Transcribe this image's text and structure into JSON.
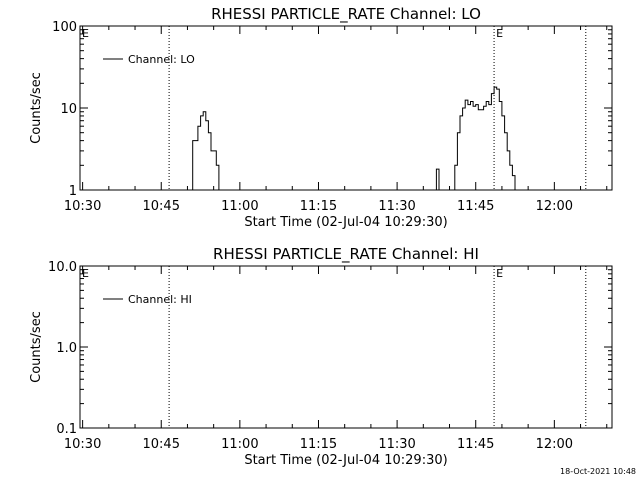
{
  "chart_data": [
    {
      "type": "line",
      "title": "RHESSI PARTICLE_RATE Channel: LO",
      "xlabel": "Start Time (02-Jul-04 10:29:30)",
      "ylabel": "Counts/sec",
      "y_scale": "log",
      "ylim": [
        1,
        100
      ],
      "yticks": [
        "1",
        "10",
        "100"
      ],
      "xlim": [
        "10:29:30",
        "12:11:00"
      ],
      "xticks": [
        "10:30",
        "10:45",
        "11:00",
        "11:15",
        "11:30",
        "11:45",
        "12:00"
      ],
      "legend": {
        "position": "top-left",
        "entries": [
          "Channel: LO"
        ]
      },
      "series": [
        {
          "name": "Channel: LO",
          "x": [
            "10:50:30",
            "10:51:00",
            "10:51:30",
            "10:52:00",
            "10:52:30",
            "10:53:00",
            "10:53:30",
            "10:54:00",
            "10:54:30",
            "10:55:00",
            "10:55:30",
            "10:56:00",
            "11:37:00",
            "11:37:30",
            "11:38:00",
            "11:40:30",
            "11:41:00",
            "11:41:30",
            "11:42:00",
            "11:42:30",
            "11:43:00",
            "11:43:30",
            "11:44:00",
            "11:44:30",
            "11:45:00",
            "11:45:30",
            "11:46:00",
            "11:46:30",
            "11:47:00",
            "11:47:30",
            "11:48:00",
            "11:48:30",
            "11:49:00",
            "11:49:30",
            "11:50:00",
            "11:50:30",
            "11:51:00",
            "11:51:30",
            "11:52:00",
            "11:52:30",
            "11:53:00"
          ],
          "y": [
            1,
            4,
            4,
            6,
            8,
            9,
            7,
            5,
            3,
            3,
            2,
            1,
            1,
            1.8,
            1,
            1,
            2,
            5,
            8,
            10,
            12.5,
            11,
            12,
            10.5,
            11,
            9.5,
            9.5,
            10.5,
            12,
            11,
            15,
            18,
            17,
            12,
            8,
            5,
            3,
            2,
            1.5,
            1,
            1
          ]
        }
      ],
      "markers": [
        {
          "time": "10:46:30",
          "label": ""
        },
        {
          "time": "11:48:30",
          "label": "E"
        },
        {
          "time": "12:06:00",
          "label": ""
        }
      ],
      "corner_label": "E"
    },
    {
      "type": "line",
      "title": "RHESSI PARTICLE_RATE Channel: HI",
      "xlabel": "Start Time (02-Jul-04 10:29:30)",
      "ylabel": "Counts/sec",
      "y_scale": "log",
      "ylim": [
        0.1,
        10
      ],
      "yticks": [
        "0.1",
        "1.0",
        "10.0"
      ],
      "xlim": [
        "10:29:30",
        "12:11:00"
      ],
      "xticks": [
        "10:30",
        "10:45",
        "11:00",
        "11:15",
        "11:30",
        "11:45",
        "12:00"
      ],
      "legend": {
        "position": "top-left",
        "entries": [
          "Channel: HI"
        ]
      },
      "series": [
        {
          "name": "Channel: HI",
          "x": [],
          "y": []
        }
      ],
      "markers": [
        {
          "time": "10:46:30",
          "label": ""
        },
        {
          "time": "11:48:30",
          "label": "E"
        },
        {
          "time": "12:06:00",
          "label": ""
        }
      ],
      "corner_label": "E"
    }
  ],
  "timestamp": "18-Oct-2021 10:48"
}
